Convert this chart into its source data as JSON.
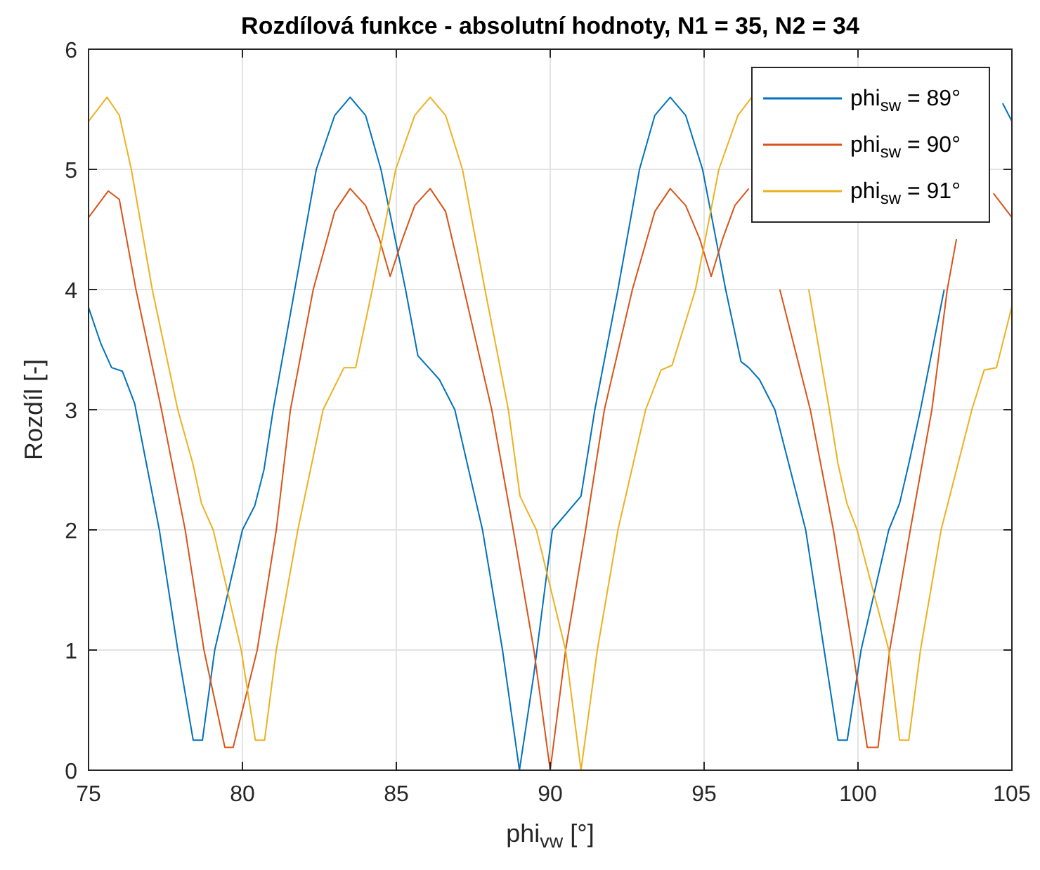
{
  "chart_data": {
    "type": "line",
    "title": "Rozdílová funkce - absolutní hodnoty, N1 = 35, N2 = 34",
    "xlabel": "phi$_{vw}$ [°]",
    "ylabel": "Rozdíl [-]",
    "xlim": [
      75,
      105
    ],
    "xticks": [
      75,
      80,
      85,
      90,
      95,
      100,
      105
    ],
    "ylim": [
      0,
      6
    ],
    "yticks": [
      0,
      1,
      2,
      3,
      4,
      5,
      6
    ],
    "grid": true,
    "legend": "top right",
    "series": [
      {
        "name": "phi$_{sw}$ = 89°",
        "color": "#0072bd",
        "x": [
          75,
          75.4,
          75.75,
          76.1,
          76.5,
          77.3,
          77.9,
          78.4,
          78.7,
          79.1,
          80.0,
          80.4,
          80.7,
          81.0,
          81.7,
          82.4,
          83.0,
          83.5,
          84.0,
          84.5,
          85.3,
          85.7,
          86.05,
          86.4,
          86.9,
          87.8,
          88.45,
          89.0,
          89.47,
          90.07,
          91.0,
          91.45,
          92.2,
          92.9,
          93.4,
          93.9,
          94.4,
          94.95,
          95.7,
          96.2,
          96.45,
          96.8,
          97.3,
          98.3,
          98.9,
          99.35,
          99.65,
          100.1,
          101.0,
          101.35,
          101.65,
          102.03,
          102.8,
          103.5,
          104.0,
          104.3,
          104.7,
          105
        ],
        "values": [
          3.85,
          3.55,
          3.35,
          3.32,
          3.05,
          2.0,
          1.0,
          0.25,
          0.25,
          1.0,
          2.0,
          2.2,
          2.5,
          3.0,
          4.0,
          5.0,
          5.45,
          5.6,
          5.45,
          5.0,
          4.0,
          3.45,
          3.35,
          3.25,
          3.0,
          2.0,
          1.0,
          0.0,
          0.8,
          2.0,
          2.28,
          3.0,
          4.0,
          5.0,
          5.45,
          5.6,
          5.45,
          5.0,
          4.0,
          3.4,
          3.35,
          3.25,
          3.0,
          2.0,
          1.0,
          0.25,
          0.25,
          1.0,
          2.0,
          2.22,
          2.55,
          3.0,
          4.0,
          null,
          null,
          null,
          5.55,
          5.4
        ]
      },
      {
        "name": "phi$_{sw}$ = 90°",
        "color": "#d95319",
        "x": [
          75,
          75.64,
          76.0,
          76.54,
          77.37,
          78.14,
          78.75,
          79.43,
          79.7,
          80.48,
          81.1,
          81.56,
          82.3,
          83.0,
          83.5,
          84.0,
          84.45,
          84.8,
          85.2,
          85.6,
          86.1,
          86.6,
          87.2,
          88.1,
          88.8,
          89.47,
          90.0,
          90.5,
          91.15,
          91.76,
          92.67,
          93.4,
          93.9,
          94.4,
          94.86,
          95.23,
          95.6,
          96.0,
          96.45,
          96.9,
          97.46,
          98.45,
          99.2,
          99.83,
          100.3,
          100.65,
          101.03,
          101.7,
          102.4,
          102.9,
          103.2,
          103.94,
          104.4,
          105
        ],
        "values": [
          4.6,
          4.82,
          4.75,
          4.0,
          3.0,
          2.0,
          1.0,
          0.19,
          0.19,
          1.0,
          2.0,
          3.0,
          4.0,
          4.65,
          4.84,
          4.7,
          4.42,
          4.11,
          4.42,
          4.7,
          4.84,
          4.65,
          4.0,
          3.0,
          2.0,
          1.0,
          0.0,
          1.0,
          2.0,
          3.0,
          4.0,
          4.65,
          4.84,
          4.7,
          4.42,
          4.11,
          4.42,
          4.7,
          4.84,
          null,
          4.0,
          3.0,
          2.0,
          1.0,
          0.19,
          0.19,
          1.0,
          2.0,
          3.0,
          4.0,
          4.42,
          null,
          4.8,
          4.6
        ]
      },
      {
        "name": "phi$_{sw}$ = 91°",
        "color": "#edb120",
        "x": [
          75,
          75.6,
          76.0,
          76.39,
          77.07,
          77.9,
          78.39,
          78.67,
          79.05,
          79.96,
          80.42,
          80.72,
          81.1,
          81.8,
          82.62,
          83.3,
          83.68,
          84.22,
          84.98,
          85.6,
          86.1,
          86.6,
          87.15,
          87.88,
          88.64,
          89.02,
          89.55,
          90.5,
          91.0,
          91.53,
          92.2,
          93.1,
          93.6,
          93.96,
          94.72,
          95.48,
          96.1,
          96.55,
          97.0,
          97.6,
          98.4,
          99.07,
          99.35,
          99.64,
          99.97,
          101.0,
          101.35,
          101.65,
          102.03,
          102.7,
          103.7,
          104.1,
          104.5,
          105
        ],
        "values": [
          5.4,
          5.6,
          5.45,
          5.0,
          4.0,
          3.0,
          2.55,
          2.22,
          2.0,
          1.0,
          0.25,
          0.25,
          1.0,
          2.0,
          3.0,
          3.35,
          3.35,
          4.0,
          5.0,
          5.45,
          5.6,
          5.45,
          5.0,
          4.0,
          3.0,
          2.28,
          2.0,
          1.0,
          0.0,
          1.0,
          2.0,
          3.0,
          3.33,
          3.37,
          4.0,
          5.0,
          5.45,
          5.6,
          null,
          null,
          4.0,
          3.0,
          2.55,
          2.22,
          2.0,
          1.0,
          0.25,
          0.25,
          1.0,
          2.0,
          3.0,
          3.33,
          3.35,
          3.86
        ]
      }
    ]
  }
}
